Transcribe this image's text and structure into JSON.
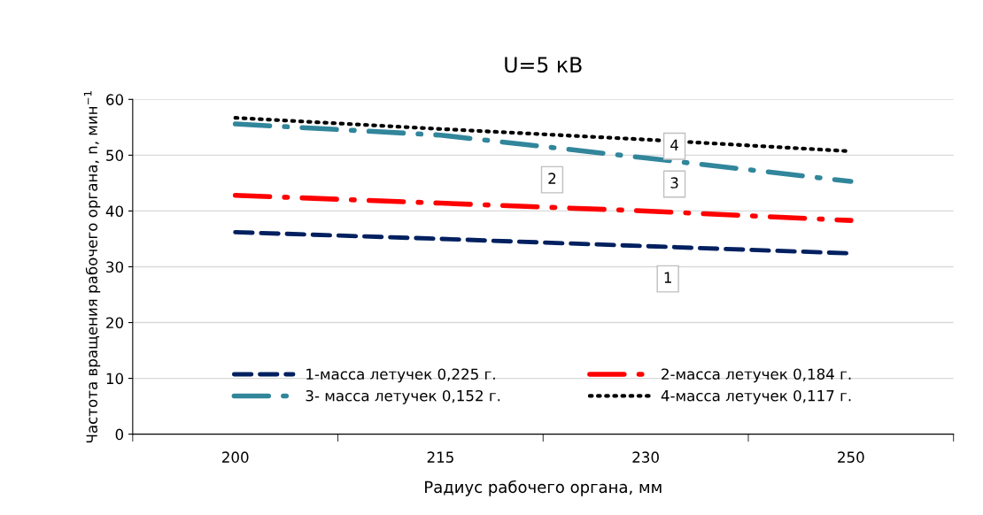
{
  "chart_data": {
    "type": "line",
    "title": "U=5 кВ",
    "xlabel": "Радиус рабочего органа, мм",
    "ylabel": "Частота вращения рабочего органа, n, мин$^{−1}$",
    "categories": [
      "200",
      "215",
      "230",
      "250"
    ],
    "series": [
      {
        "name": "1-масса летучек 0,225 г.",
        "color": "#002060",
        "line_style": "dashed",
        "values": [
          36.2,
          35.0,
          33.7,
          32.4
        ]
      },
      {
        "name": "2-масса летучек 0,184 г.",
        "color": "#ff0000",
        "line_style": "dashdot",
        "values": [
          42.8,
          41.4,
          40.0,
          38.3
        ]
      },
      {
        "name": "3- масса летучек 0,152 г.",
        "color": "#31869b",
        "line_style": "dashdot",
        "values": [
          55.6,
          53.6,
          49.5,
          45.3
        ]
      },
      {
        "name": "4-масса летучек 0,117 г.",
        "color": "#000000",
        "line_style": "dotted",
        "values": [
          56.7,
          54.7,
          52.8,
          50.7
        ]
      }
    ],
    "ylim": [
      0,
      60
    ],
    "yticks": [
      0,
      10,
      20,
      30,
      40,
      50,
      60
    ],
    "grid": "y",
    "legend": "bottom",
    "marker": "none",
    "annotations": [
      "1",
      "2",
      "3",
      "4"
    ]
  }
}
